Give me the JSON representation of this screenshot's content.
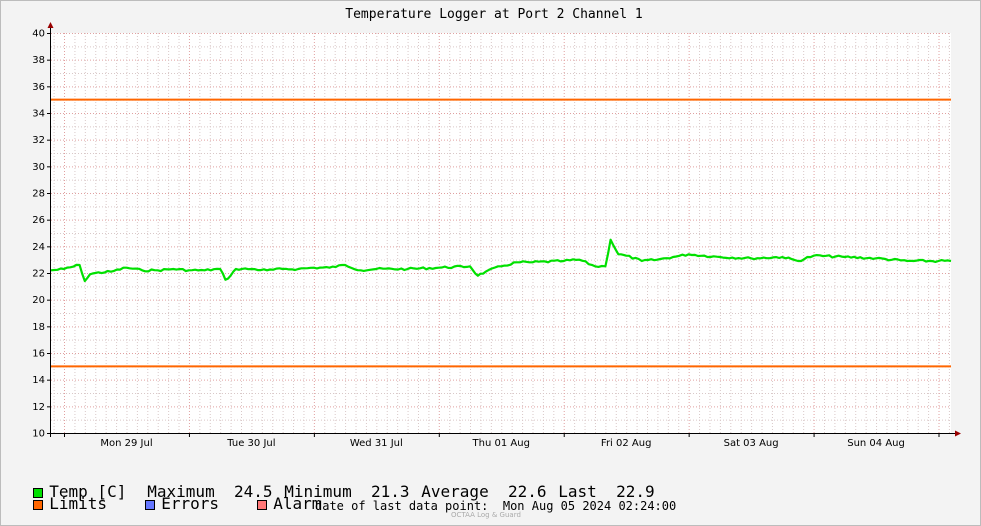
{
  "chart_data": {
    "type": "line",
    "title": "Temperature Logger at Port 2 Channel 1",
    "xlabel": "",
    "ylabel": "",
    "ylim": [
      10,
      40
    ],
    "yticks": [
      "10",
      "12",
      "14",
      "16",
      "18",
      "20",
      "22",
      "24",
      "26",
      "28",
      "30",
      "32",
      "34",
      "36",
      "38",
      "40"
    ],
    "xlim": [
      "2024-07-28 21:30",
      "2024-08-05 02:24"
    ],
    "xtick_labels": [
      {
        "label": "Mon 29 Jul",
        "date": "2024-07-29 12:00"
      },
      {
        "label": "Tue 30 Jul",
        "date": "2024-07-30 12:00"
      },
      {
        "label": "Wed 31 Jul",
        "date": "2024-07-31 12:00"
      },
      {
        "label": "Thu 01 Aug",
        "date": "2024-08-01 12:00"
      },
      {
        "label": "Fri 02 Aug",
        "date": "2024-08-02 12:00"
      },
      {
        "label": "Sat 03 Aug",
        "date": "2024-08-03 12:00"
      },
      {
        "label": "Sun 04 Aug",
        "date": "2024-08-04 12:00"
      }
    ],
    "grid": true,
    "series": [
      {
        "name": "Temp [C]",
        "color": "#00e000",
        "x": [
          "2024-07-28 21:30",
          "2024-07-29 00:00",
          "2024-07-29 03:00",
          "2024-07-29 04:00",
          "2024-07-29 05:00",
          "2024-07-29 06:00",
          "2024-07-29 09:00",
          "2024-07-29 12:00",
          "2024-07-29 15:00",
          "2024-07-29 18:00",
          "2024-07-29 21:00",
          "2024-07-30 00:00",
          "2024-07-30 03:00",
          "2024-07-30 06:00",
          "2024-07-30 07:00",
          "2024-07-30 08:00",
          "2024-07-30 09:00",
          "2024-07-30 12:00",
          "2024-07-30 15:00",
          "2024-07-30 18:00",
          "2024-07-30 21:00",
          "2024-07-31 00:00",
          "2024-07-31 03:00",
          "2024-07-31 06:00",
          "2024-07-31 09:00",
          "2024-07-31 12:00",
          "2024-07-31 18:00",
          "2024-08-01 00:00",
          "2024-08-01 06:00",
          "2024-08-01 07:30",
          "2024-08-01 09:00",
          "2024-08-01 12:00",
          "2024-08-01 15:00",
          "2024-08-01 18:00",
          "2024-08-02 00:00",
          "2024-08-02 03:00",
          "2024-08-02 06:00",
          "2024-08-02 08:00",
          "2024-08-02 09:00",
          "2024-08-02 10:30",
          "2024-08-02 12:00",
          "2024-08-02 15:00",
          "2024-08-02 18:00",
          "2024-08-02 21:00",
          "2024-08-03 00:00",
          "2024-08-03 06:00",
          "2024-08-03 12:00",
          "2024-08-03 18:00",
          "2024-08-03 21:00",
          "2024-08-04 00:00",
          "2024-08-04 06:00",
          "2024-08-04 12:00",
          "2024-08-04 18:00",
          "2024-08-05 00:00",
          "2024-08-05 02:24"
        ],
        "values": [
          22.2,
          22.3,
          22.6,
          21.4,
          21.9,
          22.0,
          22.1,
          22.4,
          22.2,
          22.2,
          22.3,
          22.2,
          22.2,
          22.3,
          21.5,
          21.8,
          22.3,
          22.3,
          22.2,
          22.3,
          22.3,
          22.4,
          22.4,
          22.6,
          22.2,
          22.3,
          22.3,
          22.4,
          22.5,
          21.8,
          22.1,
          22.5,
          22.8,
          22.8,
          22.9,
          23.0,
          22.5,
          22.5,
          24.5,
          23.4,
          23.3,
          22.9,
          23.0,
          23.2,
          23.4,
          23.2,
          23.1,
          23.2,
          22.9,
          23.3,
          23.2,
          23.1,
          22.9,
          22.9,
          22.9
        ]
      },
      {
        "name": "Limits",
        "color": "#ff6600",
        "values": [
          35,
          15
        ]
      }
    ],
    "legend_entries": [
      {
        "name": "Temp [C]",
        "color": "#00e000"
      },
      {
        "name": "Limits",
        "color": "#ff6600"
      },
      {
        "name": "Errors",
        "color": "#6677ff"
      },
      {
        "name": "Alarm",
        "color": "#ff7777"
      }
    ]
  },
  "stats": {
    "maximum_label": "Maximum",
    "maximum": "24.5",
    "minimum_label": "Minimum",
    "minimum": "21.3",
    "average_label": "Average",
    "average": "22.6",
    "last_label": "Last",
    "last": "22.9"
  },
  "last_data_point": {
    "label": "date of last data point:",
    "value": "Mon Aug 05 2024 02:24:00"
  },
  "brand": "OCTAA Log & Guard",
  "colors": {
    "grid_minor": "#d9c8c8",
    "grid_major": "#e0a0a0",
    "axis": "#000000",
    "arrow": "#990000"
  }
}
